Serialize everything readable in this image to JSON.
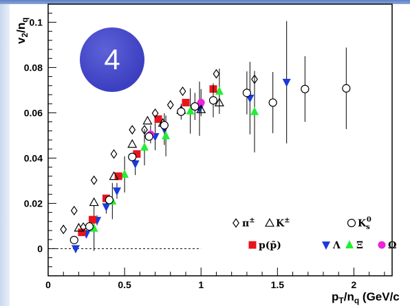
{
  "badge": {
    "label": "4"
  },
  "chart_data": {
    "type": "scatter",
    "title": "",
    "xlabel": "p_T/n_q (GeV/c",
    "ylabel": "v_2/n_q",
    "xlim": [
      0,
      2.25
    ],
    "ylim": [
      -0.012,
      0.108
    ],
    "xticks": [
      {
        "v": 0,
        "label": "0"
      },
      {
        "v": 0.5,
        "label": "0.5"
      },
      {
        "v": 1,
        "label": "1"
      },
      {
        "v": 1.5,
        "label": "1.5"
      },
      {
        "v": 2,
        "label": "2"
      }
    ],
    "yticks": [
      {
        "v": 0,
        "label": "0"
      },
      {
        "v": 0.02,
        "label": "0.02"
      },
      {
        "v": 0.04,
        "label": "0.04"
      },
      {
        "v": 0.06,
        "label": "0.06"
      },
      {
        "v": 0.08,
        "label": "0.08"
      },
      {
        "v": 0.1,
        "label": "0.1"
      }
    ],
    "zero_line": true,
    "grid": false,
    "series": [
      {
        "name": "π±",
        "marker": "diamond-open",
        "color": "#000000",
        "points": [
          [
            0.1,
            0.0085
          ],
          [
            0.17,
            0.0168
          ],
          [
            0.23,
            0.0095
          ],
          [
            0.3,
            0.0302
          ],
          [
            0.43,
            0.0418
          ],
          [
            0.55,
            0.0525
          ],
          [
            0.63,
            0.0525
          ],
          [
            0.7,
            0.0598
          ],
          [
            0.8,
            0.0635
          ],
          [
            0.88,
            0.0695
          ],
          [
            1.1,
            0.0772
          ],
          [
            1.35,
            0.0748
          ]
        ]
      },
      {
        "name": "K±",
        "marker": "triangle-open",
        "color": "#000000",
        "points": [
          [
            0.2,
            0.0092
          ],
          [
            0.3,
            0.0205
          ],
          [
            0.43,
            0.032
          ],
          [
            0.55,
            0.0462
          ],
          [
            0.65,
            0.0565
          ],
          [
            0.75,
            0.0555
          ],
          [
            0.87,
            0.0612
          ],
          [
            1.0,
            0.0615
          ],
          [
            1.12,
            0.0645
          ]
        ]
      },
      {
        "name": "K_s^0",
        "marker": "circle-open",
        "color": "#000000",
        "points": [
          [
            0.17,
            0.0038
          ],
          [
            0.27,
            0.0098
          ],
          [
            0.4,
            0.0215
          ],
          [
            0.55,
            0.0405
          ],
          [
            0.66,
            0.0495
          ],
          [
            0.76,
            0.0545
          ],
          [
            0.87,
            0.0605
          ],
          [
            0.96,
            0.0628
          ],
          [
            1.08,
            0.0655
          ],
          [
            1.3,
            0.0688
          ],
          [
            1.47,
            0.0645
          ],
          [
            1.68,
            0.0705
          ],
          [
            1.95,
            0.0708
          ]
        ],
        "errors": [
          0.0005,
          0.0008,
          0.0012,
          0.0015,
          0.0018,
          0.0025,
          0.0035,
          0.006,
          0.0075,
          0.0095,
          0.0135,
          0.0145,
          0.018
        ]
      },
      {
        "name": "p(p̄)",
        "marker": "square",
        "color": "#e8141c",
        "points": [
          [
            0.22,
            0.0072
          ],
          [
            0.29,
            0.0128
          ],
          [
            0.38,
            0.0222
          ],
          [
            0.46,
            0.032
          ],
          [
            0.58,
            0.0418
          ],
          [
            0.72,
            0.0572
          ],
          [
            0.9,
            0.0645
          ],
          [
            1.08,
            0.0705
          ]
        ]
      },
      {
        "name": "Λ",
        "marker": "triangle-down",
        "color": "#1a3adb",
        "points": [
          [
            0.18,
            0.0
          ],
          [
            0.25,
            0.0065
          ],
          [
            0.32,
            0.0125
          ],
          [
            0.38,
            0.0185
          ],
          [
            0.45,
            0.0255
          ],
          [
            0.57,
            0.0375
          ],
          [
            0.7,
            0.0495
          ],
          [
            0.76,
            0.0528
          ],
          [
            0.99,
            0.0618
          ],
          [
            1.32,
            0.0665
          ],
          [
            1.56,
            0.0735
          ]
        ],
        "errors": [
          0.0015,
          0.0018,
          0.0022,
          0.003,
          0.0035,
          0.005,
          0.006,
          0.007,
          0.012,
          0.016,
          0.027
        ]
      },
      {
        "name": "Ξ",
        "marker": "triangle-up",
        "color": "#22ee33",
        "points": [
          [
            0.3,
            0.009
          ],
          [
            0.42,
            0.021
          ],
          [
            0.5,
            0.0328
          ],
          [
            0.63,
            0.0448
          ],
          [
            0.77,
            0.0498
          ],
          [
            0.93,
            0.0608
          ],
          [
            1.12,
            0.0695
          ],
          [
            1.35,
            0.0605
          ]
        ],
        "errors": [
          0.01,
          0.008,
          0.008,
          0.008,
          0.009,
          0.01,
          0.01,
          0.018
        ]
      },
      {
        "name": "Ω",
        "marker": "circle",
        "color": "#ee22dd",
        "points": [
          [
            0.67,
            0.0505
          ],
          [
            1.0,
            0.0645
          ]
        ],
        "errors": [
          0.004,
          0.006
        ]
      }
    ],
    "legend": [
      {
        "label": "π",
        "sup": "±",
        "marker": "diamond-open",
        "color": "#000000"
      },
      {
        "label": "K",
        "sup": "±",
        "marker": "triangle-open",
        "color": "#000000"
      },
      {
        "label": "K",
        "sup": "0",
        "sub": "s",
        "marker": "circle-open",
        "color": "#000000"
      },
      {
        "label": "p(p̄)",
        "marker": "square",
        "color": "#e8141c"
      },
      {
        "label": "Λ",
        "marker": "triangle-down",
        "color": "#1a3adb"
      },
      {
        "label": "Ξ",
        "marker": "triangle-up",
        "color": "#22ee33"
      },
      {
        "label": "Ω",
        "marker": "circle",
        "color": "#ee22dd"
      }
    ]
  }
}
